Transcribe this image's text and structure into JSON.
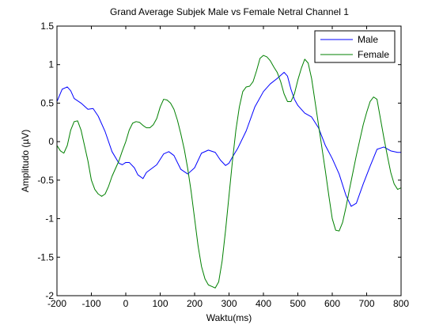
{
  "chart_data": {
    "type": "line",
    "title": "Grand Average Subjek Male vs Female Netral Channel 1",
    "xlabel": "Waktu(ms)",
    "ylabel": "Amplitudo (µV)",
    "xlim": [
      -200,
      800
    ],
    "ylim": [
      -2,
      1.5
    ],
    "xticks": [
      -200,
      -100,
      0,
      100,
      200,
      300,
      400,
      500,
      600,
      700,
      800
    ],
    "yticks": [
      -2,
      -1.5,
      -1,
      -0.5,
      0,
      0.5,
      1,
      1.5
    ],
    "xtick_labels": [
      "-200",
      "-100",
      "0",
      "100",
      "200",
      "300",
      "400",
      "500",
      "600",
      "700",
      "800"
    ],
    "ytick_labels": [
      "-2",
      "-1.5",
      "-1",
      "-0.5",
      "0",
      "0.5",
      "1",
      "1.5"
    ],
    "grid": false,
    "legend_position": "top-right",
    "series": [
      {
        "name": "Male",
        "color": "#0000ff",
        "x": [
          -200,
          -185,
          -170,
          -160,
          -150,
          -130,
          -110,
          -95,
          -80,
          -60,
          -40,
          -20,
          -10,
          0,
          10,
          25,
          35,
          50,
          60,
          75,
          90,
          110,
          125,
          140,
          160,
          180,
          200,
          220,
          240,
          260,
          275,
          290,
          300,
          310,
          325,
          350,
          375,
          400,
          420,
          440,
          460,
          470,
          480,
          490,
          500,
          520,
          540,
          560,
          580,
          600,
          620,
          640,
          655,
          670,
          690,
          710,
          730,
          750,
          770,
          790,
          800
        ],
        "y": [
          0.52,
          0.68,
          0.71,
          0.66,
          0.56,
          0.5,
          0.42,
          0.43,
          0.33,
          0.13,
          -0.13,
          -0.28,
          -0.3,
          -0.27,
          -0.27,
          -0.34,
          -0.43,
          -0.48,
          -0.4,
          -0.35,
          -0.3,
          -0.16,
          -0.13,
          -0.18,
          -0.36,
          -0.42,
          -0.34,
          -0.15,
          -0.11,
          -0.14,
          -0.24,
          -0.31,
          -0.28,
          -0.2,
          -0.09,
          0.14,
          0.45,
          0.65,
          0.75,
          0.82,
          0.9,
          0.85,
          0.68,
          0.55,
          0.47,
          0.37,
          0.32,
          0.18,
          -0.05,
          -0.22,
          -0.42,
          -0.7,
          -0.84,
          -0.8,
          -0.55,
          -0.32,
          -0.1,
          -0.07,
          -0.12,
          -0.14,
          -0.14
        ]
      },
      {
        "name": "Female",
        "color": "#008000",
        "x": [
          -200,
          -190,
          -180,
          -170,
          -160,
          -150,
          -140,
          -130,
          -120,
          -110,
          -100,
          -90,
          -80,
          -70,
          -60,
          -50,
          -40,
          -30,
          -20,
          -10,
          0,
          10,
          20,
          30,
          40,
          50,
          60,
          70,
          80,
          90,
          100,
          110,
          120,
          130,
          140,
          150,
          160,
          170,
          180,
          190,
          200,
          210,
          220,
          230,
          240,
          250,
          260,
          270,
          280,
          290,
          300,
          310,
          320,
          330,
          340,
          350,
          360,
          370,
          380,
          390,
          400,
          410,
          420,
          430,
          440,
          450,
          460,
          470,
          480,
          490,
          500,
          510,
          520,
          530,
          540,
          550,
          560,
          570,
          580,
          590,
          600,
          610,
          620,
          630,
          640,
          650,
          660,
          670,
          680,
          690,
          700,
          710,
          720,
          730,
          740,
          750,
          760,
          770,
          780,
          790,
          800
        ],
        "y": [
          -0.05,
          -0.12,
          -0.15,
          -0.05,
          0.15,
          0.26,
          0.27,
          0.15,
          -0.05,
          -0.25,
          -0.5,
          -0.62,
          -0.68,
          -0.71,
          -0.68,
          -0.58,
          -0.45,
          -0.35,
          -0.25,
          -0.12,
          0.0,
          0.15,
          0.24,
          0.26,
          0.25,
          0.21,
          0.18,
          0.18,
          0.22,
          0.3,
          0.45,
          0.55,
          0.54,
          0.5,
          0.42,
          0.28,
          0.1,
          -0.1,
          -0.35,
          -0.65,
          -1.0,
          -1.35,
          -1.62,
          -1.78,
          -1.86,
          -1.88,
          -1.9,
          -1.82,
          -1.55,
          -1.15,
          -0.7,
          -0.25,
          0.15,
          0.45,
          0.65,
          0.71,
          0.72,
          0.78,
          0.92,
          1.08,
          1.12,
          1.1,
          1.05,
          0.97,
          0.9,
          0.78,
          0.62,
          0.52,
          0.52,
          0.62,
          0.8,
          0.95,
          1.07,
          1.02,
          0.82,
          0.52,
          0.22,
          -0.08,
          -0.38,
          -0.7,
          -1.0,
          -1.15,
          -1.16,
          -1.05,
          -0.85,
          -0.62,
          -0.4,
          -0.18,
          0.02,
          0.22,
          0.38,
          0.52,
          0.58,
          0.55,
          0.3,
          0.05,
          -0.18,
          -0.4,
          -0.55,
          -0.62,
          -0.6
        ]
      }
    ]
  }
}
